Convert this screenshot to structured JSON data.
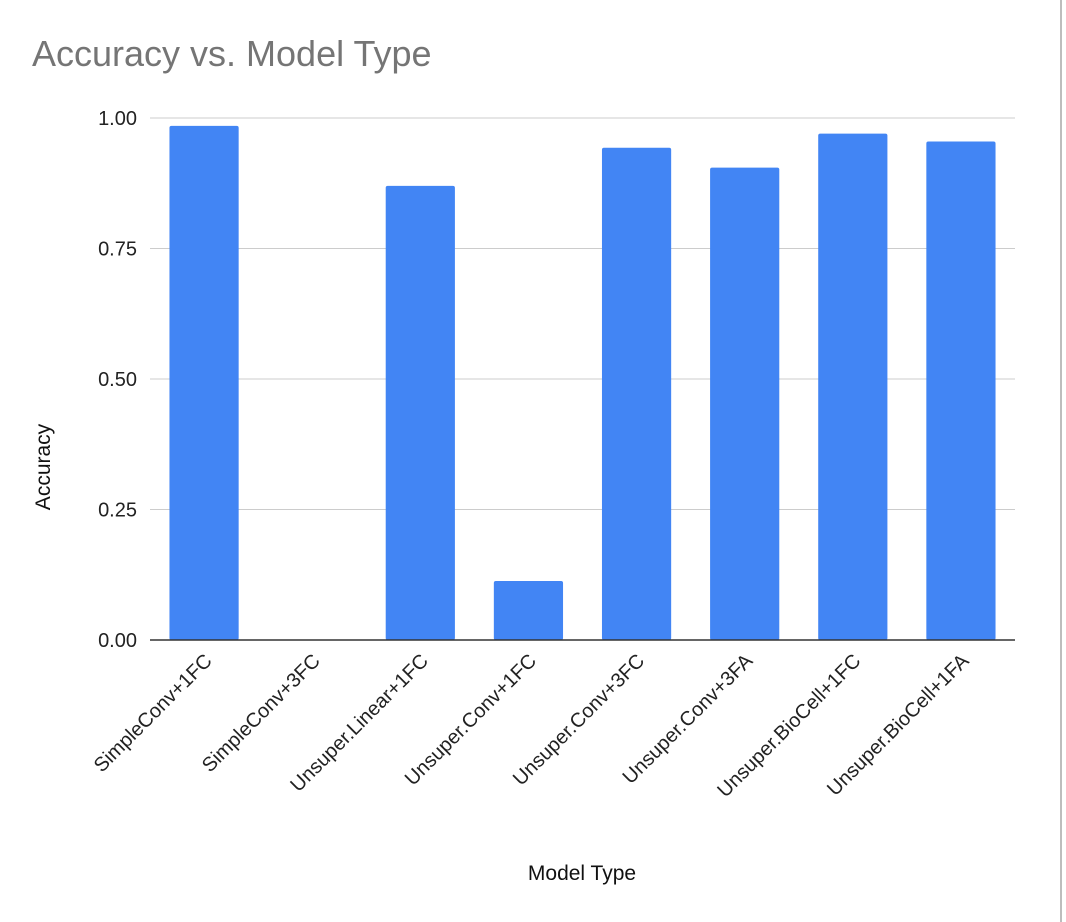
{
  "chart_data": {
    "type": "bar",
    "title": "Accuracy vs. Model Type",
    "xlabel": "Model Type",
    "ylabel": "Accuracy",
    "ylim": [
      0,
      1
    ],
    "yticks": [
      "0.00",
      "0.25",
      "0.50",
      "0.75",
      "1.00"
    ],
    "ytick_values": [
      0,
      0.25,
      0.5,
      0.75,
      1.0
    ],
    "grid": true,
    "legend": "none",
    "categories": [
      "SimpleConv+1FC",
      "SimpleConv+3FC",
      "Unsuper.Linear+1FC",
      "Unsuper.Conv+1FC",
      "Unsuper.Conv+3FC",
      "Unsuper.Conv+3FA",
      "Unsuper.BioCell+1FC",
      "Unsuper.BioCell+1FA"
    ],
    "values": [
      0.985,
      0.0,
      0.87,
      0.113,
      0.943,
      0.905,
      0.97,
      0.955
    ],
    "bar_color": "#4285f4"
  }
}
